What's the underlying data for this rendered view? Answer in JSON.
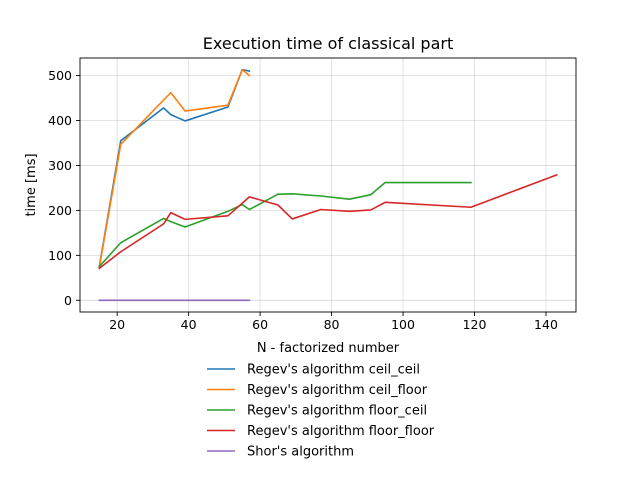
{
  "chart_data": {
    "type": "line",
    "title": "Execution time of classical part",
    "xlabel": "N - factorized number",
    "ylabel": "time [ms]",
    "xlim": [
      9.6,
      148.4
    ],
    "ylim": [
      -26,
      539
    ],
    "xticks": [
      20,
      40,
      60,
      80,
      100,
      120,
      140
    ],
    "yticks": [
      0,
      100,
      200,
      300,
      400,
      500
    ],
    "grid": true,
    "legend_position": "below-plot",
    "series": [
      {
        "name": "Regev's algorithm ceil_ceil",
        "color": "#1f77b4",
        "x": [
          15,
          21,
          33,
          35,
          39,
          51,
          55,
          57
        ],
        "y": [
          75,
          355,
          428,
          413,
          399,
          430,
          513,
          510
        ]
      },
      {
        "name": "Regev's algorithm ceil_floor",
        "color": "#ff7f0e",
        "x": [
          15,
          21,
          35,
          39,
          51,
          55,
          57
        ],
        "y": [
          73,
          347,
          462,
          421,
          434,
          513,
          500
        ]
      },
      {
        "name": "Regev's algorithm floor_ceil",
        "color": "#2ca02c",
        "x": [
          15,
          21,
          33,
          35,
          39,
          51,
          55,
          57,
          65,
          69,
          77,
          85,
          91,
          95,
          119
        ],
        "y": [
          75,
          128,
          182,
          175,
          163,
          198,
          213,
          202,
          236,
          237,
          232,
          225,
          235,
          262,
          262
        ]
      },
      {
        "name": "Regev's algorithm floor_floor",
        "color": "#d62728",
        "x": [
          15,
          21,
          33,
          35,
          39,
          51,
          55,
          57,
          65,
          69,
          77,
          85,
          91,
          95,
          119,
          143
        ],
        "y": [
          71,
          108,
          170,
          195,
          180,
          188,
          216,
          230,
          212,
          181,
          202,
          198,
          201,
          218,
          207,
          279
        ]
      },
      {
        "name": "Shor's algorithm",
        "color": "#9467bd",
        "x": [
          15,
          57
        ],
        "y": [
          0,
          0
        ]
      }
    ]
  }
}
